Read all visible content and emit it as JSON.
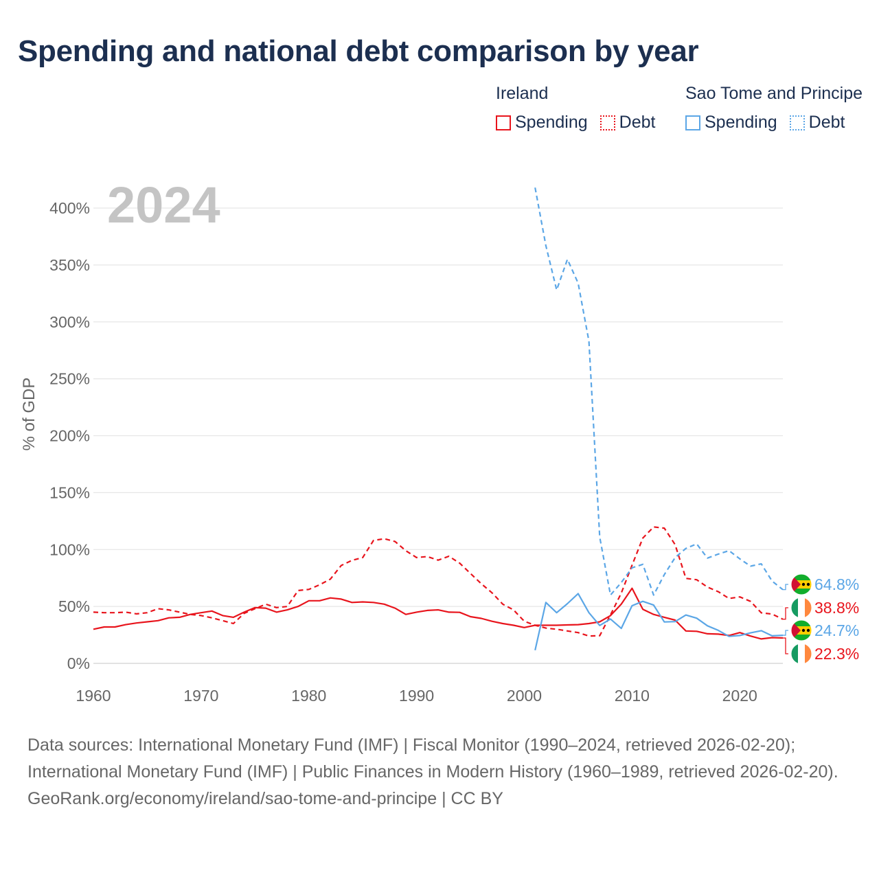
{
  "title": "Spending and national debt comparison by year",
  "legend": {
    "groups": [
      {
        "title": "Ireland",
        "color": "#e8141c",
        "items": [
          {
            "label": "Spending",
            "style": "solid"
          },
          {
            "label": "Debt",
            "style": "dotted"
          }
        ]
      },
      {
        "title": "Sao Tome and Principe",
        "color": "#5ba6e6",
        "items": [
          {
            "label": "Spending",
            "style": "solid"
          },
          {
            "label": "Debt",
            "style": "dotted"
          }
        ]
      }
    ]
  },
  "year_label": "2024",
  "chart_data": {
    "type": "line",
    "title": "Spending and national debt comparison by year",
    "ylabel": "% of GDP",
    "xlabel": "",
    "xlim": [
      1960,
      2024
    ],
    "ylim": [
      0,
      420
    ],
    "xticks": [
      "1960",
      "1970",
      "1980",
      "1990",
      "2000",
      "2010",
      "2020"
    ],
    "yticks": [
      "0%",
      "50%",
      "100%",
      "150%",
      "200%",
      "250%",
      "300%",
      "350%",
      "400%"
    ],
    "grid": true,
    "series": [
      {
        "name": "Ireland Debt",
        "country": "Ireland",
        "measure": "Debt",
        "color": "#e8141c",
        "dash": "dashed",
        "x": [
          1960,
          1961,
          1962,
          1963,
          1964,
          1965,
          1966,
          1967,
          1968,
          1969,
          1970,
          1971,
          1972,
          1973,
          1974,
          1975,
          1976,
          1977,
          1978,
          1979,
          1980,
          1981,
          1982,
          1983,
          1984,
          1985,
          1986,
          1987,
          1988,
          1989,
          1990,
          1991,
          1992,
          1993,
          1994,
          1995,
          1996,
          1997,
          1998,
          1999,
          2000,
          2001,
          2002,
          2003,
          2004,
          2005,
          2006,
          2007,
          2008,
          2009,
          2010,
          2011,
          2012,
          2013,
          2014,
          2015,
          2016,
          2017,
          2018,
          2019,
          2020,
          2021,
          2022,
          2023,
          2024
        ],
        "values": [
          45,
          44.5,
          44.5,
          45,
          43.5,
          44.5,
          48,
          47,
          45,
          43,
          42,
          40,
          37.5,
          35,
          44,
          48,
          52,
          49,
          50,
          64,
          65,
          69,
          74,
          86,
          90.5,
          93,
          108,
          109.5,
          107,
          99,
          93,
          93.8,
          90.7,
          94.1,
          88,
          79,
          70,
          62,
          52,
          47,
          37,
          33.5,
          31,
          30,
          28.5,
          27,
          24,
          24.3,
          42.6,
          61.7,
          86.3,
          110.1,
          119.9,
          118.8,
          104.3,
          74.7,
          73.5,
          67,
          63,
          57,
          58.4,
          54.5,
          44.4,
          43.3,
          38.8
        ]
      },
      {
        "name": "Ireland Spending",
        "country": "Ireland",
        "measure": "Spending",
        "color": "#e8141c",
        "dash": "solid",
        "x": [
          1960,
          1961,
          1962,
          1963,
          1964,
          1965,
          1966,
          1967,
          1968,
          1969,
          1970,
          1971,
          1972,
          1973,
          1974,
          1975,
          1976,
          1977,
          1978,
          1979,
          1980,
          1981,
          1982,
          1983,
          1984,
          1985,
          1986,
          1987,
          1988,
          1989,
          1990,
          1991,
          1992,
          1993,
          1994,
          1995,
          1996,
          1997,
          1998,
          1999,
          2000,
          2001,
          2002,
          2003,
          2004,
          2005,
          2006,
          2007,
          2008,
          2009,
          2010,
          2011,
          2012,
          2013,
          2014,
          2015,
          2016,
          2017,
          2018,
          2019,
          2020,
          2021,
          2022,
          2023,
          2024
        ],
        "values": [
          30,
          32,
          32,
          34,
          35.5,
          36.5,
          37.5,
          40,
          40.5,
          43,
          44.5,
          46,
          42,
          40.5,
          45,
          49,
          48.5,
          45,
          47,
          50,
          55,
          55,
          57.5,
          56.5,
          53.5,
          54,
          53.5,
          52,
          48.5,
          43,
          45,
          46.5,
          47,
          45,
          44.8,
          41,
          39.5,
          37,
          35,
          33.5,
          31.5,
          33.5,
          33.5,
          33.5,
          33.8,
          34,
          35,
          36.5,
          42,
          52,
          66,
          47.5,
          43,
          40.5,
          38,
          28.5,
          28.2,
          26,
          25.7,
          24.5,
          27,
          24,
          21.5,
          22.6,
          22.3
        ]
      },
      {
        "name": "Sao Tome and Principe Debt",
        "country": "Sao Tome and Principe",
        "measure": "Debt",
        "color": "#5ba6e6",
        "dash": "dashed",
        "x": [
          2001,
          2002,
          2003,
          2004,
          2005,
          2006,
          2007,
          2008,
          2009,
          2010,
          2011,
          2012,
          2013,
          2014,
          2015,
          2016,
          2017,
          2018,
          2019,
          2020,
          2021,
          2022,
          2023,
          2024
        ],
        "values": [
          418,
          367,
          328,
          355,
          334,
          283,
          111,
          60,
          71,
          84,
          87,
          60,
          78,
          93,
          101,
          105,
          92.5,
          96,
          99,
          91.8,
          85.4,
          87.4,
          72.3,
          64.8
        ]
      },
      {
        "name": "Sao Tome and Principe Spending",
        "country": "Sao Tome and Principe",
        "measure": "Spending",
        "color": "#5ba6e6",
        "dash": "solid",
        "x": [
          2001,
          2002,
          2003,
          2004,
          2005,
          2006,
          2007,
          2008,
          2009,
          2010,
          2011,
          2012,
          2013,
          2014,
          2015,
          2016,
          2017,
          2018,
          2019,
          2020,
          2021,
          2022,
          2023,
          2024
        ],
        "values": [
          11.5,
          53.5,
          44.5,
          52.5,
          61.3,
          44.5,
          33.3,
          39,
          30.7,
          50.7,
          54.5,
          51.2,
          36.4,
          36.7,
          42.5,
          39.7,
          33,
          29,
          23.7,
          24.5,
          26.8,
          28.7,
          24.2,
          24.7
        ]
      }
    ],
    "end_labels": [
      {
        "series": "Sao Tome and Principe Debt",
        "text": "64.8%",
        "flag": "sao-tome",
        "color": "#5ba6e6"
      },
      {
        "series": "Ireland Debt",
        "text": "38.8%",
        "flag": "ireland",
        "color": "#e8141c"
      },
      {
        "series": "Sao Tome and Principe Spending",
        "text": "24.7%",
        "flag": "sao-tome",
        "color": "#5ba6e6"
      },
      {
        "series": "Ireland Spending",
        "text": "22.3%",
        "flag": "ireland",
        "color": "#e8141c"
      }
    ]
  },
  "footer": {
    "sources": "Data sources: International Monetary Fund (IMF) | Fiscal Monitor (1990–2024, retrieved 2026-02-20); International Monetary Fund (IMF) | Public Finances in Modern History (1960–1989, retrieved 2026-02-20).",
    "credit": "GeoRank.org/economy/ireland/sao-tome-and-principe | CC BY"
  }
}
